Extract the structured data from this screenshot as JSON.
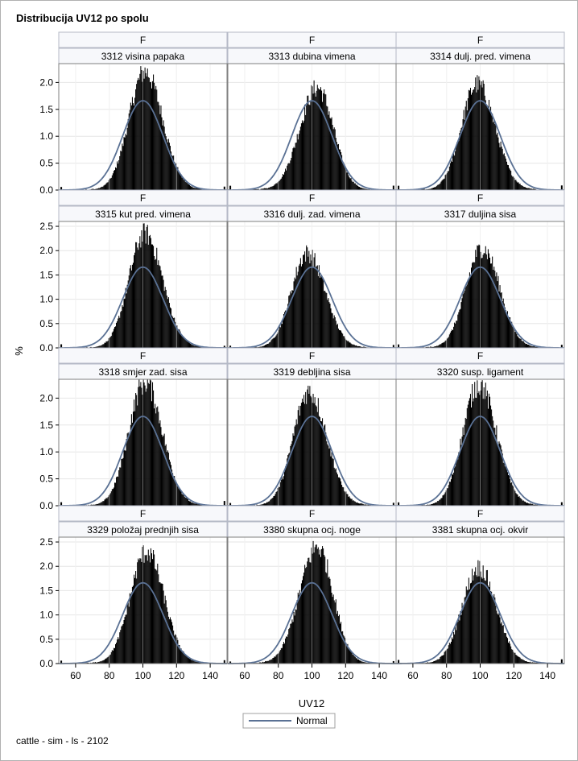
{
  "title": "Distribucija UV12 po spolu",
  "footer": "cattle - sim - ls - 2102",
  "chart_data": {
    "type": "histogram-panel",
    "xlabel": "UV12",
    "ylabel": "%",
    "xlim": [
      50,
      150
    ],
    "xticks": [
      60,
      80,
      100,
      120,
      140
    ],
    "row_ylims": [
      [
        0,
        2.35
      ],
      [
        0,
        2.6
      ],
      [
        0,
        2.35
      ],
      [
        0,
        2.6
      ]
    ],
    "row_yticks": [
      [
        0.0,
        0.5,
        1.0,
        1.5,
        2.0
      ],
      [
        0.0,
        0.5,
        1.0,
        1.5,
        2.0,
        2.5
      ],
      [
        0.0,
        0.5,
        1.0,
        1.5,
        2.0
      ],
      [
        0.0,
        0.5,
        1.0,
        1.5,
        2.0,
        2.5
      ]
    ],
    "grid": true,
    "legend": {
      "position": "bottom",
      "entries": [
        "Normal"
      ]
    },
    "normal_curve": {
      "mean": 100,
      "sd": 12,
      "peak_percent": 1.66
    },
    "panels": [
      {
        "sex": "F",
        "trait": "3312 visina papaka",
        "peak": 2.2,
        "center": 101,
        "skew": 0.4
      },
      {
        "sex": "F",
        "trait": "3313 dubina vimena",
        "peak": 1.9,
        "center": 103,
        "skew": -0.4
      },
      {
        "sex": "F",
        "trait": "3314 dulj. pred. vimena",
        "peak": 1.97,
        "center": 98,
        "skew": 0.5
      },
      {
        "sex": "F",
        "trait": "3315 kut pred. vimena",
        "peak": 2.35,
        "center": 101,
        "skew": 0.4
      },
      {
        "sex": "F",
        "trait": "3316 dulj. zad. vimena",
        "peak": 1.95,
        "center": 97,
        "skew": 0.5
      },
      {
        "sex": "F",
        "trait": "3317 duljina sisa",
        "peak": 2.05,
        "center": 101,
        "skew": 0.3
      },
      {
        "sex": "F",
        "trait": "3318 smjer zad. sisa",
        "peak": 2.3,
        "center": 101,
        "skew": 0.3
      },
      {
        "sex": "F",
        "trait": "3319 debljina sisa",
        "peak": 2.12,
        "center": 98,
        "skew": 0.5
      },
      {
        "sex": "F",
        "trait": "3320 susp. ligament",
        "peak": 2.25,
        "center": 99,
        "skew": 0.4
      },
      {
        "sex": "F",
        "trait": "3329 položaj prednjih sisa",
        "peak": 2.3,
        "center": 102,
        "skew": 0.2
      },
      {
        "sex": "F",
        "trait": "3380 skupna ocj. noge",
        "peak": 2.4,
        "center": 103,
        "skew": -0.5
      },
      {
        "sex": "F",
        "trait": "3381 skupna ocj. okvir",
        "peak": 1.97,
        "center": 99,
        "skew": 0.2
      }
    ]
  }
}
